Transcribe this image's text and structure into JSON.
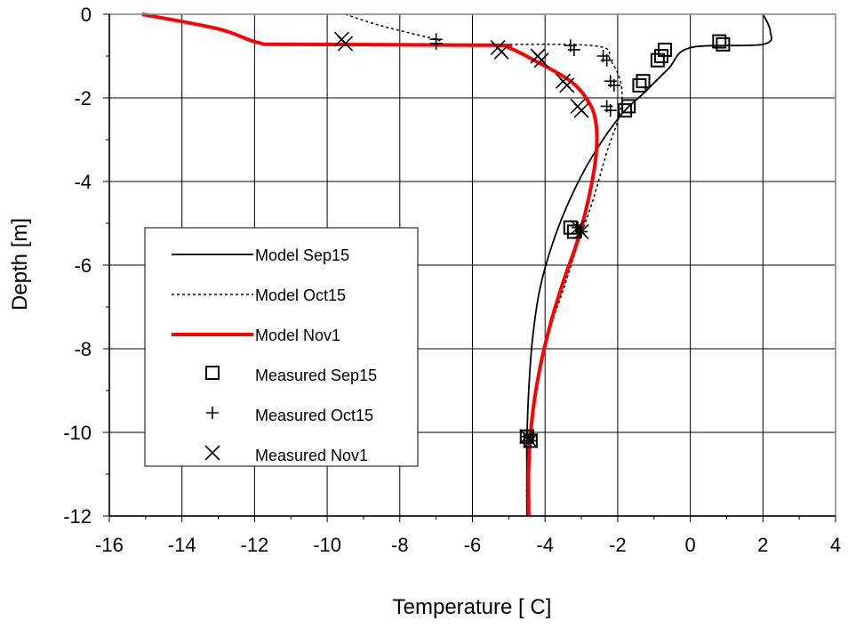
{
  "chart_data": {
    "type": "line",
    "xlabel": "Temperature [ C]",
    "ylabel": "Depth [m]",
    "xlim": [
      -16,
      4
    ],
    "ylim": [
      -12,
      0
    ],
    "xticks": [
      -16,
      -14,
      -12,
      -10,
      -8,
      -6,
      -4,
      -2,
      0,
      2,
      4
    ],
    "yticks": [
      0,
      -2,
      -4,
      -6,
      -8,
      -10,
      -12
    ],
    "x_tick_labels": [
      "-16",
      "-14",
      "-12",
      "-10",
      "-8",
      "-6",
      "-4",
      "-2",
      "0",
      "2",
      "4"
    ],
    "y_tick_labels": [
      "0",
      "-2",
      "-4",
      "-6",
      "-8",
      "-10",
      "-12"
    ],
    "grid": true,
    "legend_position": "left-middle",
    "series": [
      {
        "name": "Model Sep15",
        "kind": "line",
        "style": "solid-thin",
        "color": "#000000",
        "points": [
          [
            2.0,
            0.0
          ],
          [
            2.2,
            -0.4
          ],
          [
            2.0,
            -0.72
          ],
          [
            0.0,
            -0.8
          ],
          [
            -0.6,
            -1.3
          ],
          [
            -1.3,
            -1.9
          ],
          [
            -1.9,
            -2.4
          ],
          [
            -2.7,
            -3.4
          ],
          [
            -3.3,
            -4.4
          ],
          [
            -3.8,
            -5.5
          ],
          [
            -4.15,
            -6.6
          ],
          [
            -4.35,
            -7.8
          ],
          [
            -4.45,
            -9.0
          ],
          [
            -4.5,
            -10.2
          ],
          [
            -4.5,
            -11.0
          ],
          [
            -4.5,
            -12.0
          ]
        ]
      },
      {
        "name": "Model Oct15",
        "kind": "line",
        "style": "dotted-thin",
        "color": "#000000",
        "points": [
          [
            -9.5,
            0.0
          ],
          [
            -8.5,
            -0.28
          ],
          [
            -7.0,
            -0.6
          ],
          [
            -6.5,
            -0.72
          ],
          [
            -2.7,
            -0.75
          ],
          [
            -2.2,
            -1.1
          ],
          [
            -1.9,
            -1.7
          ],
          [
            -1.95,
            -2.4
          ],
          [
            -2.3,
            -3.3
          ],
          [
            -2.7,
            -4.5
          ],
          [
            -3.1,
            -5.5
          ],
          [
            -3.5,
            -6.6
          ],
          [
            -3.9,
            -7.6
          ],
          [
            -4.2,
            -8.7
          ],
          [
            -4.4,
            -9.8
          ],
          [
            -4.5,
            -11.0
          ],
          [
            -4.5,
            -12.0
          ]
        ]
      },
      {
        "name": "Model Nov1",
        "kind": "line",
        "style": "solid-thick",
        "color": "#ff0000",
        "points": [
          [
            -15.1,
            0.0
          ],
          [
            -13.0,
            -0.35
          ],
          [
            -11.9,
            -0.68
          ],
          [
            -11.0,
            -0.72
          ],
          [
            -5.5,
            -0.74
          ],
          [
            -5.0,
            -0.8
          ],
          [
            -4.3,
            -1.1
          ],
          [
            -3.3,
            -1.6
          ],
          [
            -2.8,
            -2.1
          ],
          [
            -2.6,
            -2.6
          ],
          [
            -2.6,
            -3.4
          ],
          [
            -2.8,
            -4.4
          ],
          [
            -3.1,
            -5.4
          ],
          [
            -3.5,
            -6.4
          ],
          [
            -3.85,
            -7.4
          ],
          [
            -4.15,
            -8.5
          ],
          [
            -4.35,
            -9.6
          ],
          [
            -4.45,
            -10.8
          ],
          [
            -4.45,
            -12.0
          ]
        ]
      },
      {
        "name": "Measured Sep15",
        "kind": "marker",
        "marker": "square",
        "color": "#000000",
        "points": [
          [
            0.8,
            -0.65
          ],
          [
            0.9,
            -0.72
          ],
          [
            -0.7,
            -0.85
          ],
          [
            -0.8,
            -1.0
          ],
          [
            -0.9,
            -1.1
          ],
          [
            -1.3,
            -1.6
          ],
          [
            -1.4,
            -1.7
          ],
          [
            -1.7,
            -2.2
          ],
          [
            -1.8,
            -2.3
          ],
          [
            -3.3,
            -5.1
          ],
          [
            -3.2,
            -5.2
          ],
          [
            -4.5,
            -10.1
          ],
          [
            -4.4,
            -10.2
          ]
        ]
      },
      {
        "name": "Measured Oct15",
        "kind": "marker",
        "marker": "plus",
        "color": "#000000",
        "points": [
          [
            -7.0,
            -0.6
          ],
          [
            -7.0,
            -0.7
          ],
          [
            -3.3,
            -0.75
          ],
          [
            -3.2,
            -0.85
          ],
          [
            -2.4,
            -1.0
          ],
          [
            -2.3,
            -1.1
          ],
          [
            -2.2,
            -1.6
          ],
          [
            -2.1,
            -1.7
          ],
          [
            -2.3,
            -2.2
          ],
          [
            -2.2,
            -2.3
          ],
          [
            -3.1,
            -5.1
          ],
          [
            -3.0,
            -5.2
          ],
          [
            -4.5,
            -10.1
          ],
          [
            -4.4,
            -10.2
          ]
        ]
      },
      {
        "name": "Measured Nov1",
        "kind": "marker",
        "marker": "x",
        "color": "#000000",
        "points": [
          [
            -9.6,
            -0.6
          ],
          [
            -9.5,
            -0.7
          ],
          [
            -5.3,
            -0.8
          ],
          [
            -5.2,
            -0.9
          ],
          [
            -4.2,
            -1.0
          ],
          [
            -4.1,
            -1.1
          ],
          [
            -3.5,
            -1.6
          ],
          [
            -3.4,
            -1.7
          ],
          [
            -3.1,
            -2.2
          ],
          [
            -3.0,
            -2.3
          ],
          [
            -3.1,
            -5.1
          ],
          [
            -3.0,
            -5.2
          ],
          [
            -4.5,
            -10.1
          ],
          [
            -4.4,
            -10.2
          ]
        ]
      }
    ]
  }
}
